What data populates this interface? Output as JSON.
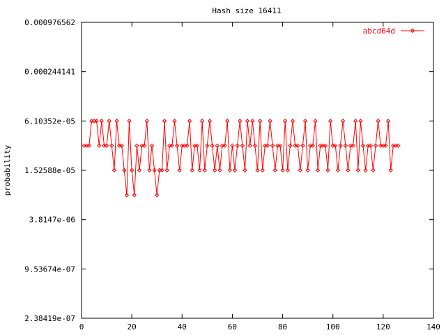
{
  "chart_data": {
    "type": "line",
    "title": "Hash size 16411",
    "xlabel": "",
    "ylabel": "probability",
    "xlim": [
      0,
      140
    ],
    "x_ticks": [
      "0",
      "20",
      "40",
      "60",
      "80",
      "100",
      "120",
      "140"
    ],
    "y_scale": "log2",
    "y_ticks": [
      "0.000976562",
      "0.000244141",
      "6.10352e-05",
      "1.52588e-05",
      "3.8147e-06",
      "9.53674e-07",
      "2.38419e-07"
    ],
    "grid": false,
    "legend_position": "top-right",
    "series": [
      {
        "name": "abcd64d",
        "color": "#ff0000",
        "marker": "diamond",
        "values": [
          3.05e-05,
          3.05e-05,
          3.05e-05,
          6.1e-05,
          6.1e-05,
          6.1e-05,
          3.05e-05,
          6.1e-05,
          3.05e-05,
          3.05e-05,
          6.1e-05,
          3.05e-05,
          1.53e-05,
          6.1e-05,
          3.05e-05,
          3.05e-05,
          1.53e-05,
          7.6e-06,
          6.1e-05,
          1.53e-05,
          7.6e-06,
          3.05e-05,
          1.53e-05,
          3.05e-05,
          3.05e-05,
          6.1e-05,
          1.53e-05,
          3.05e-05,
          1.53e-05,
          7.6e-06,
          1.53e-05,
          1.53e-05,
          6.1e-05,
          1.53e-05,
          3.05e-05,
          3.05e-05,
          6.1e-05,
          3.05e-05,
          1.53e-05,
          3.05e-05,
          3.05e-05,
          3.05e-05,
          6.1e-05,
          1.53e-05,
          3.05e-05,
          3.05e-05,
          1.53e-05,
          6.1e-05,
          1.53e-05,
          3.05e-05,
          6.1e-05,
          3.05e-05,
          1.53e-05,
          3.05e-05,
          1.53e-05,
          3.05e-05,
          3.05e-05,
          6.1e-05,
          1.53e-05,
          3.05e-05,
          1.53e-05,
          3.05e-05,
          6.1e-05,
          3.05e-05,
          1.53e-05,
          6.1e-05,
          3.05e-05,
          6.1e-05,
          3.05e-05,
          1.53e-05,
          6.1e-05,
          1.53e-05,
          3.05e-05,
          3.05e-05,
          6.1e-05,
          3.05e-05,
          1.53e-05,
          3.05e-05,
          3.05e-05,
          1.53e-05,
          6.1e-05,
          1.53e-05,
          3.05e-05,
          6.1e-05,
          3.05e-05,
          3.05e-05,
          1.53e-05,
          3.05e-05,
          6.1e-05,
          1.53e-05,
          3.05e-05,
          3.05e-05,
          6.1e-05,
          1.53e-05,
          3.05e-05,
          3.05e-05,
          3.05e-05,
          1.53e-05,
          6.1e-05,
          3.05e-05,
          3.05e-05,
          1.53e-05,
          3.05e-05,
          6.1e-05,
          3.05e-05,
          1.53e-05,
          3.05e-05,
          3.05e-05,
          6.1e-05,
          1.53e-05,
          6.1e-05,
          3.05e-05,
          1.53e-05,
          3.05e-05,
          3.05e-05,
          1.53e-05,
          3.05e-05,
          6.1e-05,
          3.05e-05,
          3.05e-05,
          3.05e-05,
          6.1e-05,
          1.53e-05,
          3.05e-05,
          3.05e-05,
          3.05e-05
        ],
        "note_values": "log2(probability) per bucket; see y_ticks"
      }
    ]
  }
}
